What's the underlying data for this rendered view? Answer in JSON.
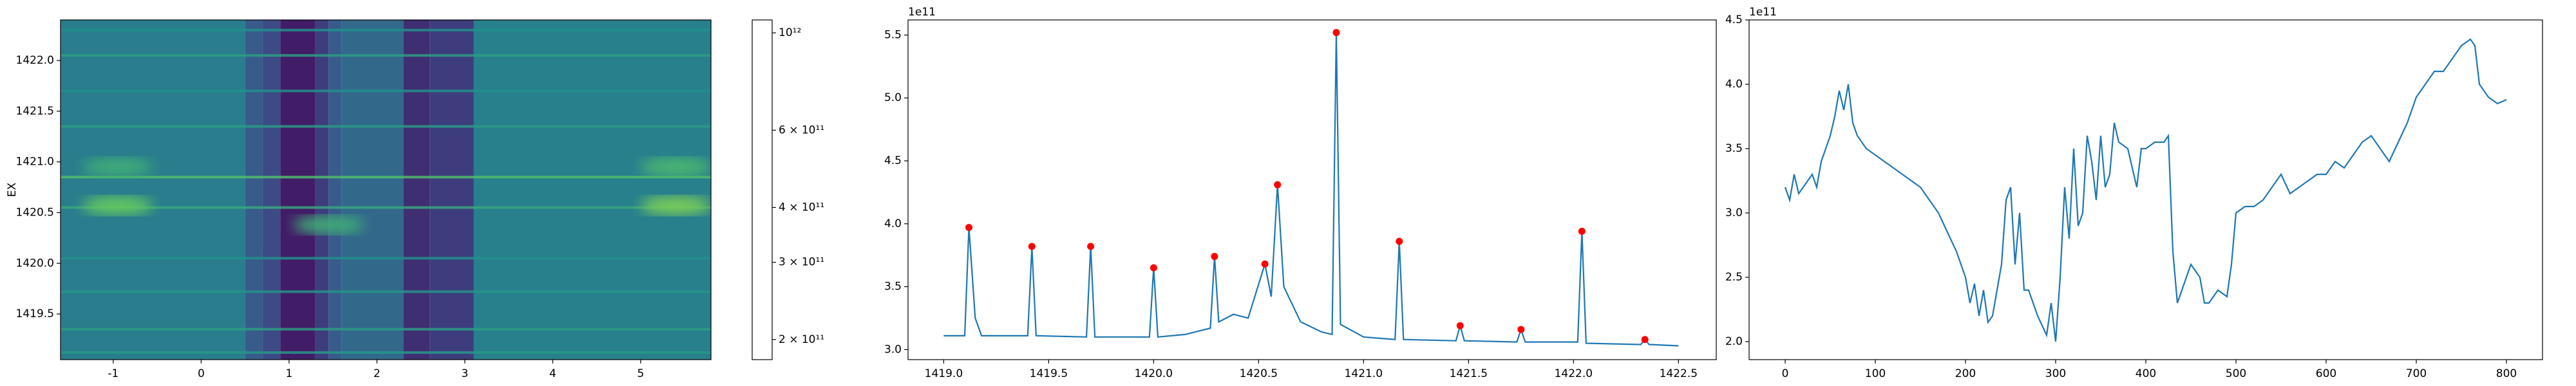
{
  "chart_data": [
    {
      "type": "heatmap",
      "colormap": "viridis",
      "ylabel": "EX",
      "xlim": [
        -1.6,
        5.8
      ],
      "xticks": [
        -1,
        0,
        1,
        2,
        3,
        4,
        5
      ],
      "ylim": [
        1419.05,
        1422.4
      ],
      "yticks": [
        1419.5,
        {
          "value": 1420,
          "label": "1420.0"
        },
        1420.5,
        {
          "value": 1421,
          "label": "1421.0"
        },
        1421.5,
        {
          "value": 1422,
          "label": "1422.0"
        }
      ],
      "x_edges": [
        -1.6,
        0.5,
        0.7,
        0.9,
        1.3,
        1.45,
        1.6,
        2.3,
        2.6,
        3.1,
        5.8
      ],
      "values": [
        380000000000,
        300000000000,
        270000000000,
        210000000000,
        250000000000,
        300000000000,
        330000000000,
        230000000000,
        250000000000,
        390000000000
      ],
      "rows": {
        "y": [
          1419.12,
          1419.35,
          1419.72,
          1420.05,
          1420.55,
          1420.85,
          1421.35,
          1421.7,
          1422.05,
          1422.3
        ],
        "values": [
          460000000000,
          480000000000,
          450000000000,
          440000000000,
          520000000000,
          620000000000,
          470000000000,
          440000000000,
          480000000000,
          440000000000
        ]
      },
      "blobs": {
        "x": [
          -0.95,
          5.4,
          1.45,
          -0.95,
          5.4
        ],
        "y": [
          1420.57,
          1420.57,
          1420.38,
          1420.95,
          1420.95
        ],
        "values": [
          700000000000,
          750000000000,
          550000000000,
          550000000000,
          600000000000
        ]
      },
      "colorbar": {
        "log": true,
        "lim": [
          180000000000,
          1070000000000
        ],
        "ticks": [
          {
            "value": 200000000000,
            "label": "2 × 10¹¹"
          },
          {
            "value": 300000000000,
            "label": "3 × 10¹¹"
          },
          {
            "value": 400000000000,
            "label": "4 × 10¹¹"
          },
          {
            "value": 600000000000,
            "label": "6 × 10¹¹"
          },
          {
            "value": 1000000000000,
            "label": "10¹²"
          }
        ]
      }
    },
    {
      "type": "line",
      "y_offset_label": "1e11",
      "xlim": [
        1418.83,
        1422.68
      ],
      "xticks": [
        {
          "value": 1419,
          "label": "1419.0"
        },
        1419.5,
        {
          "value": 1420,
          "label": "1420.0"
        },
        1420.5,
        {
          "value": 1421,
          "label": "1421.0"
        },
        1421.5,
        {
          "value": 1422,
          "label": "1422.0"
        },
        1422.5
      ],
      "ylim": [
        2.92,
        5.62
      ],
      "yticks": [
        {
          "value": 3,
          "label": "3.0"
        },
        3.5,
        {
          "value": 4,
          "label": "4.0"
        },
        4.5,
        {
          "value": 5,
          "label": "5.0"
        },
        5.5
      ],
      "series": [
        {
          "type": "line",
          "color": "#1f77b4",
          "x": [
            1419.0,
            1419.1,
            1419.12,
            1419.15,
            1419.18,
            1419.4,
            1419.42,
            1419.44,
            1419.68,
            1419.7,
            1419.72,
            1419.98,
            1420.0,
            1420.02,
            1420.15,
            1420.27,
            1420.29,
            1420.31,
            1420.38,
            1420.45,
            1420.53,
            1420.56,
            1420.59,
            1420.62,
            1420.7,
            1420.8,
            1420.85,
            1420.87,
            1420.89,
            1421.0,
            1421.15,
            1421.17,
            1421.19,
            1421.44,
            1421.46,
            1421.48,
            1421.73,
            1421.75,
            1421.77,
            1422.02,
            1422.04,
            1422.06,
            1422.32,
            1422.34,
            1422.36,
            1422.5
          ],
          "values": [
            3.11,
            3.11,
            3.97,
            3.25,
            3.11,
            3.11,
            3.82,
            3.11,
            3.1,
            3.82,
            3.1,
            3.1,
            3.65,
            3.1,
            3.12,
            3.17,
            3.74,
            3.22,
            3.28,
            3.25,
            3.68,
            3.42,
            4.31,
            3.5,
            3.22,
            3.14,
            3.12,
            5.52,
            3.2,
            3.1,
            3.08,
            3.86,
            3.08,
            3.07,
            3.19,
            3.07,
            3.06,
            3.16,
            3.06,
            3.06,
            3.94,
            3.05,
            3.04,
            3.08,
            3.04,
            3.03
          ]
        },
        {
          "type": "scatter",
          "color": "#ff0000",
          "x": [
            1419.12,
            1419.42,
            1419.7,
            1420.0,
            1420.29,
            1420.53,
            1420.59,
            1420.87,
            1421.17,
            1421.46,
            1421.75,
            1422.04,
            1422.34
          ],
          "values": [
            3.97,
            3.82,
            3.82,
            3.65,
            3.74,
            3.68,
            4.31,
            5.52,
            3.86,
            3.19,
            3.16,
            3.94,
            3.08
          ]
        }
      ]
    },
    {
      "type": "line",
      "y_offset_label": "1e11",
      "xlim": [
        -40,
        840
      ],
      "xticks": [
        0,
        100,
        200,
        300,
        400,
        500,
        600,
        700,
        800
      ],
      "ylim": [
        1.86,
        4.5
      ],
      "yticks": [
        {
          "value": 2,
          "label": "2.0"
        },
        2.5,
        {
          "value": 3,
          "label": "3.0"
        },
        3.5,
        {
          "value": 4,
          "label": "4.0"
        },
        4.5
      ],
      "series": [
        {
          "type": "line",
          "color": "#1f77b4",
          "x": [
            0,
            5,
            10,
            15,
            20,
            25,
            30,
            35,
            40,
            45,
            50,
            55,
            60,
            65,
            70,
            75,
            80,
            90,
            100,
            110,
            120,
            130,
            140,
            150,
            160,
            170,
            180,
            190,
            200,
            205,
            210,
            215,
            220,
            225,
            230,
            240,
            245,
            250,
            255,
            260,
            265,
            270,
            280,
            290,
            295,
            300,
            305,
            310,
            315,
            320,
            325,
            330,
            335,
            340,
            345,
            350,
            355,
            360,
            365,
            370,
            380,
            390,
            395,
            400,
            410,
            420,
            425,
            430,
            435,
            440,
            450,
            460,
            465,
            470,
            480,
            490,
            495,
            500,
            510,
            520,
            530,
            540,
            550,
            560,
            570,
            580,
            590,
            600,
            610,
            620,
            630,
            640,
            650,
            660,
            670,
            680,
            690,
            700,
            710,
            720,
            730,
            740,
            750,
            760,
            765,
            770,
            780,
            790,
            800
          ],
          "values": [
            3.2,
            3.1,
            3.3,
            3.15,
            3.2,
            3.25,
            3.3,
            3.2,
            3.4,
            3.5,
            3.6,
            3.75,
            3.95,
            3.8,
            4.0,
            3.7,
            3.6,
            3.5,
            3.45,
            3.4,
            3.35,
            3.3,
            3.25,
            3.2,
            3.1,
            3.0,
            2.85,
            2.7,
            2.5,
            2.3,
            2.45,
            2.2,
            2.4,
            2.15,
            2.2,
            2.6,
            3.1,
            3.2,
            2.6,
            3.0,
            2.4,
            2.4,
            2.2,
            2.05,
            2.3,
            2.0,
            2.5,
            3.2,
            2.8,
            3.5,
            2.9,
            3.0,
            3.6,
            3.4,
            3.1,
            3.6,
            3.2,
            3.3,
            3.7,
            3.55,
            3.5,
            3.2,
            3.5,
            3.5,
            3.55,
            3.55,
            3.6,
            2.7,
            2.3,
            2.4,
            2.6,
            2.5,
            2.3,
            2.3,
            2.4,
            2.35,
            2.6,
            3.0,
            3.05,
            3.05,
            3.1,
            3.2,
            3.3,
            3.15,
            3.2,
            3.25,
            3.3,
            3.3,
            3.4,
            3.35,
            3.45,
            3.55,
            3.6,
            3.5,
            3.4,
            3.55,
            3.7,
            3.9,
            4.0,
            4.1,
            4.1,
            4.2,
            4.3,
            4.35,
            4.3,
            4.0,
            3.9,
            3.85,
            3.88
          ]
        }
      ]
    }
  ]
}
